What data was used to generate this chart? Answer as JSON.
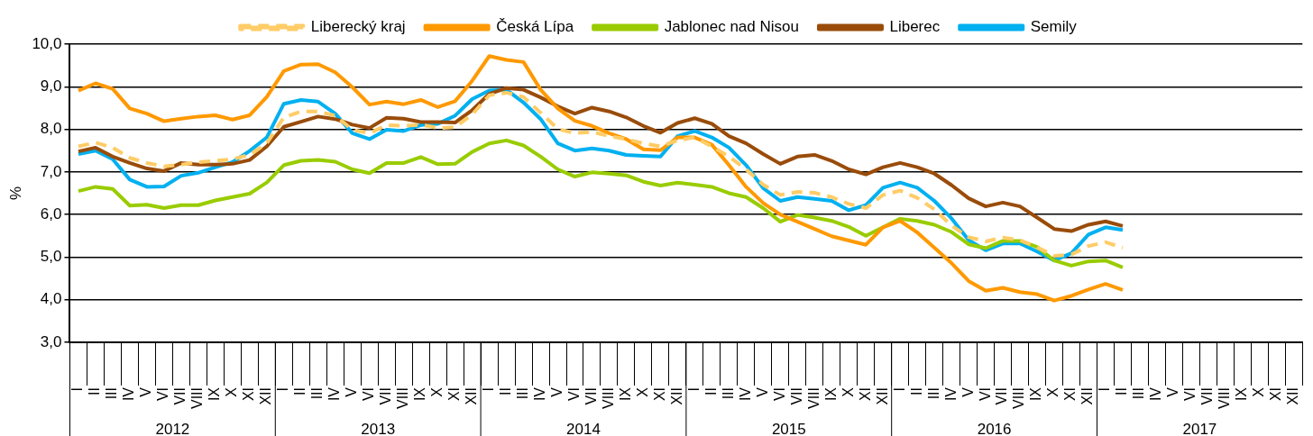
{
  "chart_data": {
    "type": "line",
    "ylabel": "%",
    "categories": [
      "I",
      "II",
      "III",
      "IV",
      "V",
      "VI",
      "VII",
      "VIII",
      "IX",
      "X",
      "XI",
      "XII",
      "I",
      "II",
      "III",
      "IV",
      "V",
      "VI",
      "VII",
      "VIII",
      "IX",
      "X",
      "XI",
      "XII",
      "I",
      "II",
      "III",
      "IV",
      "V",
      "VI",
      "VII",
      "VIII",
      "IX",
      "X",
      "XI",
      "XII",
      "I",
      "II",
      "III",
      "IV",
      "V",
      "VI",
      "VII",
      "VIII",
      "IX",
      "X",
      "XI",
      "XII",
      "I",
      "II",
      "III",
      "IV",
      "V",
      "VI",
      "VII",
      "VIII",
      "IX",
      "X",
      "XI",
      "XII",
      "I",
      "II",
      "III",
      "IV",
      "V",
      "VI",
      "VII",
      "VIII",
      "IX",
      "X",
      "XI",
      "XII"
    ],
    "annotations": [
      "2012",
      "2013",
      "2014",
      "2015",
      "2016",
      "2017"
    ],
    "ylim": [
      3,
      10
    ],
    "yticks": [
      {
        "value": 3,
        "label": "3,0"
      },
      {
        "value": 4,
        "label": "4,0"
      },
      {
        "value": 5,
        "label": "5,0"
      },
      {
        "value": 6,
        "label": "6,0"
      },
      {
        "value": 7,
        "label": "7,0"
      },
      {
        "value": 8,
        "label": "8,0"
      },
      {
        "value": 9,
        "label": "9,0"
      },
      {
        "value": 10,
        "label": "10,0"
      }
    ],
    "grid": "y",
    "legend": "top",
    "series": [
      {
        "name": "Liberecký kraj",
        "color": "#ffcc66",
        "line_style": "dashed",
        "values": [
          7.6,
          7.69,
          7.57,
          7.33,
          7.21,
          7.13,
          7.17,
          7.23,
          7.26,
          7.3,
          7.4,
          7.67,
          8.28,
          8.42,
          8.42,
          8.32,
          7.99,
          7.91,
          8.1,
          8.08,
          8.11,
          8.03,
          8.05,
          8.35,
          8.8,
          8.86,
          8.76,
          8.39,
          8.01,
          7.91,
          7.94,
          7.84,
          7.77,
          7.67,
          7.6,
          7.74,
          7.81,
          7.6,
          7.36,
          7.06,
          6.7,
          6.46,
          6.53,
          6.51,
          6.41,
          6.25,
          6.15,
          6.46,
          6.56,
          6.39,
          6.12,
          5.74,
          5.47,
          5.37,
          5.46,
          5.4,
          5.23,
          5.03,
          5.06,
          5.26,
          5.35,
          5.22,
          null,
          null,
          null,
          null,
          null,
          null,
          null,
          null,
          null,
          null
        ]
      },
      {
        "name": "Česká Lípa",
        "color": "#ff9900",
        "line_style": "solid",
        "values": [
          8.91,
          9.08,
          8.95,
          8.49,
          8.37,
          8.19,
          8.25,
          8.3,
          8.33,
          8.23,
          8.33,
          8.76,
          9.37,
          9.52,
          9.53,
          9.34,
          8.99,
          8.58,
          8.65,
          8.59,
          8.69,
          8.52,
          8.66,
          9.14,
          9.72,
          9.63,
          9.58,
          8.93,
          8.49,
          8.2,
          8.08,
          7.91,
          7.77,
          7.53,
          7.51,
          7.81,
          7.81,
          7.64,
          7.16,
          6.65,
          6.27,
          6.0,
          5.83,
          5.66,
          5.49,
          5.39,
          5.29,
          5.7,
          5.85,
          5.58,
          5.22,
          4.86,
          4.44,
          4.21,
          4.28,
          4.18,
          4.13,
          3.98,
          4.09,
          4.24,
          4.37,
          4.23,
          null,
          null,
          null,
          null,
          null,
          null,
          null,
          null,
          null,
          null
        ]
      },
      {
        "name": "Jablonec nad Nisou",
        "color": "#99cc00",
        "line_style": "solid",
        "values": [
          6.55,
          6.65,
          6.6,
          6.21,
          6.23,
          6.15,
          6.22,
          6.22,
          6.33,
          6.41,
          6.49,
          6.75,
          7.16,
          7.26,
          7.28,
          7.24,
          7.06,
          6.97,
          7.21,
          7.21,
          7.35,
          7.18,
          7.19,
          7.47,
          7.67,
          7.74,
          7.62,
          7.36,
          7.06,
          6.89,
          6.99,
          6.96,
          6.92,
          6.77,
          6.68,
          6.75,
          6.7,
          6.65,
          6.5,
          6.41,
          6.15,
          5.83,
          5.99,
          5.93,
          5.85,
          5.71,
          5.5,
          5.7,
          5.9,
          5.85,
          5.76,
          5.59,
          5.3,
          5.21,
          5.38,
          5.38,
          5.24,
          4.92,
          4.8,
          4.9,
          4.92,
          4.76,
          null,
          null,
          null,
          null,
          null,
          null,
          null,
          null,
          null,
          null
        ]
      },
      {
        "name": "Liberec",
        "color": "#994c0a",
        "line_style": "solid",
        "values": [
          7.48,
          7.57,
          7.36,
          7.21,
          7.08,
          7.02,
          7.21,
          7.17,
          7.17,
          7.19,
          7.28,
          7.6,
          8.06,
          8.18,
          8.3,
          8.24,
          8.11,
          8.03,
          8.27,
          8.25,
          8.17,
          8.17,
          8.16,
          8.45,
          8.83,
          8.97,
          8.93,
          8.75,
          8.54,
          8.37,
          8.51,
          8.42,
          8.28,
          8.08,
          7.92,
          8.15,
          8.26,
          8.13,
          7.84,
          7.67,
          7.42,
          7.19,
          7.36,
          7.4,
          7.26,
          7.06,
          6.94,
          7.11,
          7.21,
          7.11,
          6.96,
          6.69,
          6.38,
          6.19,
          6.28,
          6.19,
          5.93,
          5.66,
          5.61,
          5.76,
          5.84,
          5.73,
          null,
          null,
          null,
          null,
          null,
          null,
          null,
          null,
          null,
          null
        ]
      },
      {
        "name": "Semily",
        "color": "#00b0f0",
        "line_style": "solid",
        "values": [
          7.42,
          7.5,
          7.3,
          6.82,
          6.65,
          6.66,
          6.91,
          6.98,
          7.11,
          7.23,
          7.49,
          7.81,
          8.6,
          8.69,
          8.65,
          8.37,
          7.91,
          7.77,
          7.99,
          7.96,
          8.1,
          8.13,
          8.32,
          8.71,
          8.91,
          8.93,
          8.63,
          8.24,
          7.67,
          7.5,
          7.55,
          7.5,
          7.4,
          7.38,
          7.36,
          7.84,
          7.96,
          7.81,
          7.57,
          7.16,
          6.62,
          6.32,
          6.41,
          6.37,
          6.32,
          6.1,
          6.22,
          6.63,
          6.75,
          6.63,
          6.32,
          5.91,
          5.4,
          5.16,
          5.32,
          5.32,
          5.13,
          4.92,
          5.09,
          5.53,
          5.7,
          5.64,
          null,
          null,
          null,
          null,
          null,
          null,
          null,
          null,
          null,
          null
        ]
      }
    ]
  }
}
